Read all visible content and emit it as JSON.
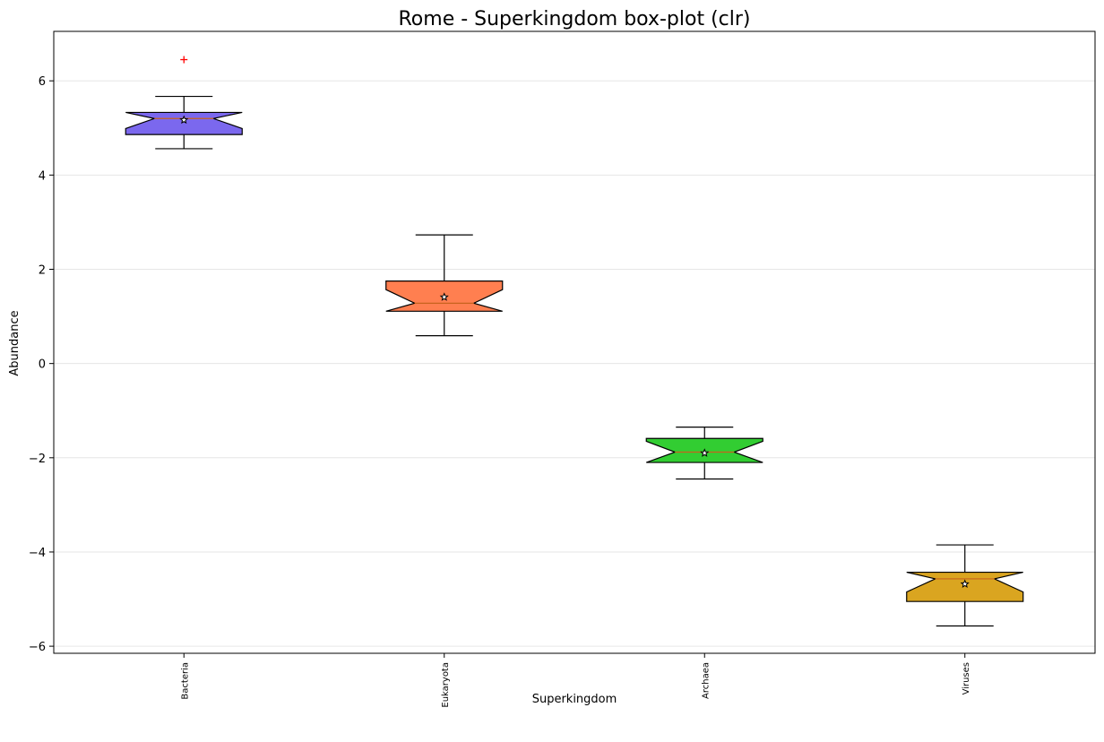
{
  "chart_data": {
    "type": "boxplot",
    "title": "Rome - Superkingdom box-plot (clr)",
    "xlabel": "Superkingdom",
    "ylabel": "Abundance",
    "ylim": [
      -6.15,
      7.05
    ],
    "yticks": [
      -6,
      -4,
      -2,
      0,
      2,
      4,
      6
    ],
    "ytick_labels": [
      "−6",
      "−4",
      "−2",
      "0",
      "2",
      "4",
      "6"
    ],
    "grid": "horizontal",
    "notched": true,
    "categories": [
      "Bacteria",
      "Eukaryota",
      "Archaea",
      "Viruses"
    ],
    "series": [
      {
        "category": "Bacteria",
        "color": "#7b68ee",
        "whisker_low": 4.56,
        "q1": 4.86,
        "median": 5.2,
        "q3": 5.33,
        "whisker_high": 5.67,
        "mean": 5.17,
        "outliers": [
          6.45
        ]
      },
      {
        "category": "Eukaryota",
        "color": "#ff7f50",
        "whisker_low": 0.59,
        "q1": 1.11,
        "median": 1.28,
        "q3": 1.75,
        "whisker_high": 2.73,
        "mean": 1.41,
        "outliers": []
      },
      {
        "category": "Archaea",
        "color": "#32cd32",
        "whisker_low": -2.45,
        "q1": -2.1,
        "median": -1.88,
        "q3": -1.59,
        "whisker_high": -1.35,
        "mean": -1.9,
        "outliers": []
      },
      {
        "category": "Viruses",
        "color": "#daa520",
        "whisker_low": -5.57,
        "q1": -5.05,
        "median": -4.57,
        "q3": -4.43,
        "whisker_high": -3.85,
        "mean": -4.68,
        "outliers": []
      }
    ],
    "outlier_color": "#ff0000",
    "mean_marker": "star"
  }
}
